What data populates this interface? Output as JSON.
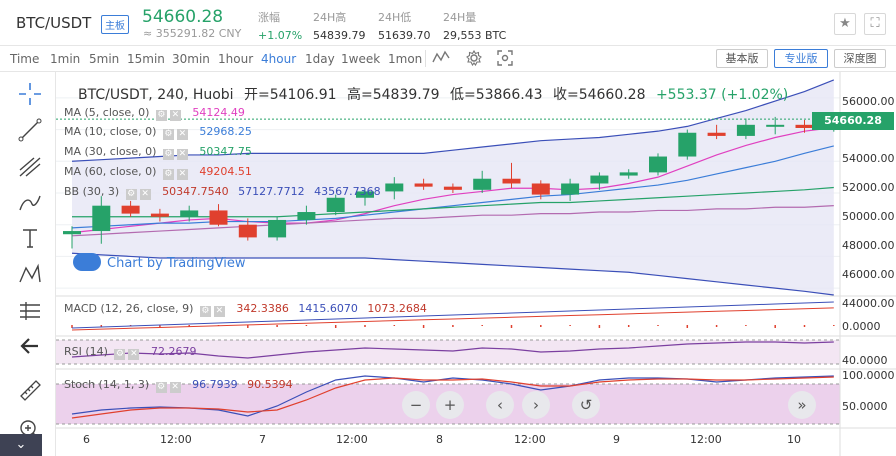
{
  "header": {
    "pair": "BTC/USDT",
    "badge": "主板",
    "price": "54660.28",
    "cny": "≈ 355291.82 CNY",
    "stats": [
      {
        "label": "涨幅",
        "value": "+1.07%"
      },
      {
        "label": "24H高",
        "value": "54839.79"
      },
      {
        "label": "24H低",
        "value": "51639.70"
      },
      {
        "label": "24H量",
        "value": "29,553 BTC"
      }
    ]
  },
  "toolbar": {
    "timeframes": [
      "Time",
      "1min",
      "5min",
      "15min",
      "30min",
      "1hour",
      "4hour",
      "1day",
      "1week",
      "1mon"
    ],
    "active": "4hour",
    "views": [
      "基本版",
      "专业版",
      "深度图"
    ],
    "active_view": "专业版"
  },
  "legend": {
    "symbol": "BTC/USDT, 240, Huobi",
    "open": "开=54106.91",
    "high": "高=54839.79",
    "low": "低=53866.43",
    "close": "收=54660.28",
    "change": "+553.37 (+1.02%)"
  },
  "indicators": {
    "ma5": {
      "label": "MA (5, close, 0)",
      "value": "54124.49",
      "color": "#e040c0"
    },
    "ma10": {
      "label": "MA (10, close, 0)",
      "value": "52968.25",
      "color": "#3b7dd8"
    },
    "ma30": {
      "label": "MA (30, close, 0)",
      "value": "50347.75",
      "color": "#26a269"
    },
    "ma60": {
      "label": "MA (60, close, 0)",
      "value": "49204.51",
      "color": "#e0402e"
    },
    "bb": {
      "label": "BB (30, 3)",
      "v1": "50347.7540",
      "v2": "57127.7712",
      "v3": "43567.7368"
    },
    "macd": {
      "label": "MACD (12, 26, close, 9)",
      "v1": "342.3386",
      "v2": "1415.6070",
      "v3": "1073.2684"
    },
    "rsi": {
      "label": "RSI (14)",
      "value": "72.2679"
    },
    "stoch": {
      "label": "Stoch (14, 1, 3)",
      "v1": "96.7939",
      "v2": "90.5394"
    }
  },
  "watermark": "Chart by TradingView",
  "price_axis": [
    "56000.00",
    "54000.00",
    "52000.00",
    "50000.00",
    "48000.00",
    "46000.00",
    "44000.00"
  ],
  "current_price_label": "54660.28",
  "macd_axis": [
    "0.0000"
  ],
  "rsi_axis": [
    "40.0000"
  ],
  "stoch_axis": [
    "100.0000",
    "50.0000"
  ],
  "time_axis": [
    "6",
    "12:00",
    "7",
    "12:00",
    "8",
    "12:00",
    "9",
    "12:00",
    "10"
  ],
  "nav_buttons": [
    "−",
    "+",
    "‹",
    "›",
    "↺",
    "»"
  ],
  "chart_data": {
    "type": "candlestick",
    "symbol": "BTC/USDT",
    "interval": "240",
    "exchange": "Huobi",
    "ylim": [
      43000,
      57000
    ],
    "candles": [
      {
        "o": 47400,
        "h": 47900,
        "l": 46500,
        "c": 47600
      },
      {
        "o": 47600,
        "h": 49800,
        "l": 46800,
        "c": 49200
      },
      {
        "o": 49200,
        "h": 49500,
        "l": 48500,
        "c": 48700
      },
      {
        "o": 48700,
        "h": 49000,
        "l": 48200,
        "c": 48500
      },
      {
        "o": 48500,
        "h": 49200,
        "l": 48200,
        "c": 48900
      },
      {
        "o": 48900,
        "h": 49300,
        "l": 47900,
        "c": 48000
      },
      {
        "o": 48000,
        "h": 48400,
        "l": 47000,
        "c": 47200
      },
      {
        "o": 47200,
        "h": 48500,
        "l": 47000,
        "c": 48300
      },
      {
        "o": 48300,
        "h": 49200,
        "l": 48000,
        "c": 48800
      },
      {
        "o": 48800,
        "h": 49900,
        "l": 48600,
        "c": 49700
      },
      {
        "o": 49700,
        "h": 50200,
        "l": 49200,
        "c": 50100
      },
      {
        "o": 50100,
        "h": 51000,
        "l": 49600,
        "c": 50600
      },
      {
        "o": 50600,
        "h": 50900,
        "l": 50200,
        "c": 50400
      },
      {
        "o": 50400,
        "h": 50600,
        "l": 50000,
        "c": 50200
      },
      {
        "o": 50200,
        "h": 51400,
        "l": 50000,
        "c": 50900
      },
      {
        "o": 50900,
        "h": 51900,
        "l": 50300,
        "c": 50600
      },
      {
        "o": 50600,
        "h": 50800,
        "l": 49600,
        "c": 49900
      },
      {
        "o": 49900,
        "h": 50900,
        "l": 49500,
        "c": 50600
      },
      {
        "o": 50600,
        "h": 51300,
        "l": 50200,
        "c": 51100
      },
      {
        "o": 51100,
        "h": 51500,
        "l": 50900,
        "c": 51300
      },
      {
        "o": 51300,
        "h": 52500,
        "l": 51100,
        "c": 52300
      },
      {
        "o": 52300,
        "h": 54000,
        "l": 52100,
        "c": 53800
      },
      {
        "o": 53800,
        "h": 54300,
        "l": 53400,
        "c": 53600
      },
      {
        "o": 53600,
        "h": 54700,
        "l": 53400,
        "c": 54300
      },
      {
        "o": 54300,
        "h": 54800,
        "l": 53700,
        "c": 54300
      },
      {
        "o": 54300,
        "h": 54600,
        "l": 53800,
        "c": 54100
      },
      {
        "o": 54100,
        "h": 54839.79,
        "l": 53866.43,
        "c": 54660.28
      }
    ],
    "series": [
      {
        "name": "MA (5, close, 0)",
        "values": [
          47500,
          47700,
          47900,
          48100,
          48300,
          48400,
          48200,
          48100,
          48100,
          48300,
          48700,
          49200,
          49600,
          49900,
          50100,
          50300,
          50300,
          50200,
          50300,
          50600,
          51000,
          51700,
          52400,
          53000,
          53500,
          53900,
          54124.49
        ]
      },
      {
        "name": "MA (10, close, 0)",
        "values": [
          47800,
          47900,
          48000,
          48100,
          48100,
          48200,
          48200,
          48200,
          48300,
          48400,
          48600,
          48800,
          49000,
          49200,
          49400,
          49600,
          49800,
          49900,
          50100,
          50300,
          50500,
          50800,
          51200,
          51600,
          52000,
          52500,
          52968.25
        ]
      },
      {
        "name": "MA (30, close, 0)",
        "values": [
          48500,
          48500,
          48500,
          48500,
          48500,
          48500,
          48500,
          48500,
          48600,
          48700,
          48800,
          48900,
          49000,
          49100,
          49200,
          49300,
          49400,
          49400,
          49500,
          49600,
          49700,
          49800,
          49900,
          50000,
          50100,
          50200,
          50347.75
        ]
      },
      {
        "name": "MA (60, close, 0)",
        "values": [
          47300,
          47400,
          47500,
          47600,
          47700,
          47800,
          47900,
          48000,
          48100,
          48200,
          48300,
          48400,
          48400,
          48500,
          48600,
          48600,
          48700,
          48700,
          48800,
          48800,
          48900,
          48900,
          49000,
          49000,
          49100,
          49100,
          49204.51
        ]
      },
      {
        "name": "BB upper",
        "values": [
          52000,
          52100,
          52200,
          52300,
          52400,
          52400,
          52500,
          52500,
          52500,
          52500,
          52500,
          52500,
          52500,
          52700,
          52900,
          53100,
          53300,
          53400,
          53500,
          53700,
          53900,
          54200,
          54700,
          55200,
          55800,
          56400,
          57127.77
        ]
      },
      {
        "name": "BB lower",
        "values": [
          46200,
          46100,
          46000,
          45900,
          45900,
          45900,
          45900,
          45900,
          45900,
          45900,
          45900,
          45800,
          45700,
          45600,
          45500,
          45400,
          45300,
          45200,
          45100,
          45000,
          44800,
          44600,
          44400,
          44200,
          44000,
          43800,
          43567.74
        ]
      }
    ]
  }
}
